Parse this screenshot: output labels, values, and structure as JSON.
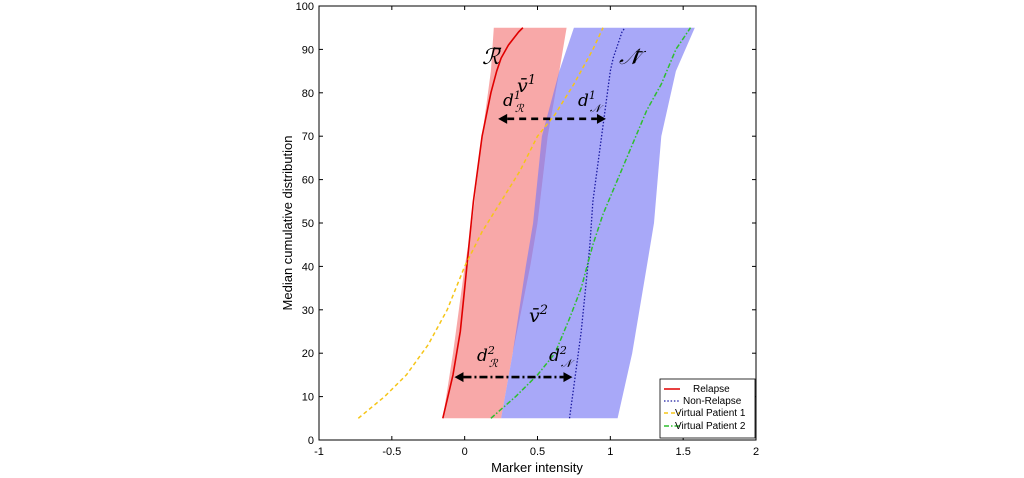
{
  "chart_data": {
    "type": "line",
    "title": "",
    "xlabel": "Marker intensity",
    "ylabel": "Median cumulative distribution",
    "xlim": [
      -1,
      2
    ],
    "ylim": [
      0,
      100
    ],
    "xticks": [
      -1,
      -0.5,
      0,
      0.5,
      1,
      1.5,
      2
    ],
    "xtick_labels": [
      "-1",
      "-0.5",
      "0",
      "0.5",
      "1",
      "1.5",
      "2"
    ],
    "yticks": [
      0,
      10,
      20,
      30,
      40,
      50,
      60,
      70,
      80,
      90,
      100
    ],
    "ytick_labels": [
      "0",
      "10",
      "20",
      "30",
      "40",
      "50",
      "60",
      "70",
      "80",
      "90",
      "100"
    ],
    "grid": false,
    "legend_position": "bottom-right",
    "colors": {
      "relapse_band": "#f47a7a",
      "nonrelapse_band": "#7a7af4",
      "relapse": "#e00000",
      "nonrelapse": "#1a1aa0",
      "vp1": "#f5c518",
      "vp2": "#2fbf2f"
    },
    "bands": [
      {
        "name": "Relapse band",
        "lower": [
          [
            -0.15,
            5
          ],
          [
            -0.08,
            20
          ],
          [
            0.0,
            40
          ],
          [
            0.05,
            50
          ],
          [
            0.12,
            70
          ],
          [
            0.18,
            85
          ],
          [
            0.2,
            95
          ]
        ],
        "upper": [
          [
            0.25,
            5
          ],
          [
            0.33,
            20
          ],
          [
            0.45,
            40
          ],
          [
            0.5,
            50
          ],
          [
            0.57,
            70
          ],
          [
            0.65,
            85
          ],
          [
            0.7,
            95
          ]
        ]
      },
      {
        "name": "Non-Relapse band",
        "lower": [
          [
            0.25,
            5
          ],
          [
            0.33,
            20
          ],
          [
            0.42,
            40
          ],
          [
            0.47,
            50
          ],
          [
            0.53,
            70
          ],
          [
            0.65,
            85
          ],
          [
            0.75,
            95
          ]
        ],
        "upper": [
          [
            1.05,
            5
          ],
          [
            1.15,
            20
          ],
          [
            1.25,
            40
          ],
          [
            1.3,
            50
          ],
          [
            1.35,
            70
          ],
          [
            1.45,
            85
          ],
          [
            1.58,
            95
          ]
        ]
      }
    ],
    "series": [
      {
        "name": "Relapse",
        "style": "solid",
        "x": [
          -0.15,
          -0.08,
          -0.03,
          0.0,
          0.03,
          0.06,
          0.08,
          0.1,
          0.12,
          0.15,
          0.18,
          0.22,
          0.25,
          0.3,
          0.37,
          0.4
        ],
        "y": [
          5,
          15,
          25,
          35,
          45,
          55,
          60,
          65,
          70,
          75,
          80,
          85,
          88,
          91,
          94,
          95
        ]
      },
      {
        "name": "Non-Relapse",
        "style": "dotted",
        "x": [
          0.72,
          0.76,
          0.8,
          0.83,
          0.86,
          0.88,
          0.9,
          0.92,
          0.94,
          0.96,
          0.98,
          1.0,
          1.02,
          1.05,
          1.08,
          1.1
        ],
        "y": [
          5,
          15,
          25,
          35,
          45,
          55,
          60,
          65,
          70,
          75,
          80,
          85,
          88,
          91,
          94,
          95
        ]
      },
      {
        "name": "Virtual Patient 1",
        "style": "dashed",
        "x": [
          -0.73,
          -0.55,
          -0.4,
          -0.25,
          -0.12,
          0.0,
          0.12,
          0.25,
          0.38,
          0.5,
          0.62,
          0.75,
          0.88,
          0.95
        ],
        "y": [
          5,
          10,
          15,
          22,
          30,
          40,
          48,
          55,
          62,
          70,
          75,
          82,
          90,
          95
        ]
      },
      {
        "name": "Virtual Patient 2",
        "style": "dashdot",
        "x": [
          0.18,
          0.35,
          0.5,
          0.62,
          0.72,
          0.8,
          0.88,
          0.95,
          1.05,
          1.15,
          1.25,
          1.35,
          1.45,
          1.55
        ],
        "y": [
          5,
          10,
          15,
          20,
          28,
          35,
          45,
          52,
          60,
          68,
          76,
          82,
          90,
          95
        ]
      }
    ],
    "annotations": {
      "band_R": "ℛ̄",
      "band_N": "𝒩̄",
      "v1_base": "v̄",
      "v1_sup": "1",
      "v2_base": "v̄",
      "v2_sup": "2",
      "dR1_base": "d",
      "dR1_sup": "1",
      "dR1_sub": "ℛ",
      "dN1_base": "d",
      "dN1_sup": "1",
      "dN1_sub": "𝒩",
      "dR2_base": "d",
      "dR2_sup": "2",
      "dR2_sub": "ℛ",
      "dN2_base": "d",
      "dN2_sup": "2",
      "dN2_sub": "𝒩"
    },
    "arrows": [
      {
        "name": "arrow-1",
        "x_from": 0.23,
        "x_to": 0.97,
        "y": 74,
        "style": "dashed"
      },
      {
        "name": "arrow-2",
        "x_from": -0.07,
        "x_to": 0.74,
        "y": 14.5,
        "style": "dashdot"
      }
    ]
  }
}
